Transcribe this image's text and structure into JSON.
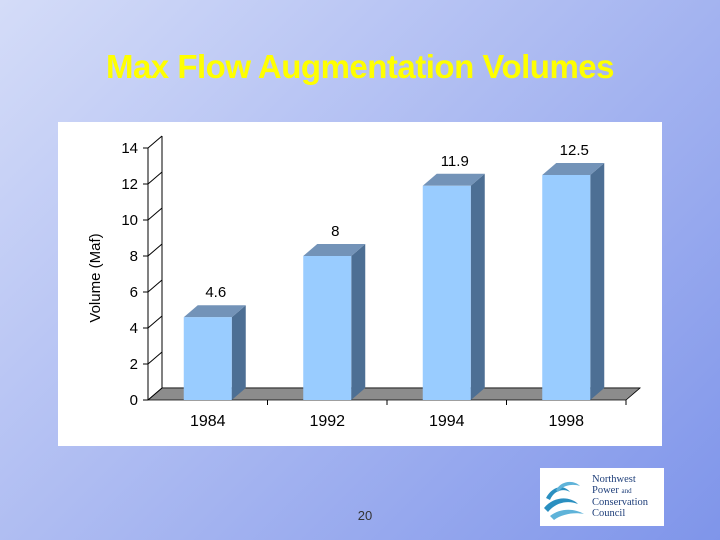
{
  "title": "Max Flow Augmentation Volumes",
  "page_number": "20",
  "logo": {
    "name": "Northwest Power and Conservation Council",
    "lines": [
      "Northwest",
      "Power",
      "and",
      "Conservation",
      "Council"
    ],
    "colors": {
      "text": "#1f3f7a",
      "wave": "#2a8fc0"
    }
  },
  "colors": {
    "title": "#ffff00",
    "bar_front": "#99ccff",
    "bar_side": "#4d6f94",
    "bar_top": "#7393b8",
    "floor": "#8c8c8c",
    "background": "#aebcf2"
  },
  "chart_data": {
    "type": "bar",
    "categories": [
      "1984",
      "1992",
      "1994",
      "1998"
    ],
    "values": [
      4.6,
      8,
      11.9,
      12.5
    ],
    "data_labels": [
      "4.6",
      "8",
      "11.9",
      "12.5"
    ],
    "title": "",
    "xlabel": "",
    "ylabel": "Volume (Maf)",
    "ylim": [
      0,
      14
    ],
    "yticks": [
      0,
      2,
      4,
      6,
      8,
      10,
      12,
      14
    ],
    "grid": false,
    "legend": "none",
    "style": "3d-bar"
  }
}
